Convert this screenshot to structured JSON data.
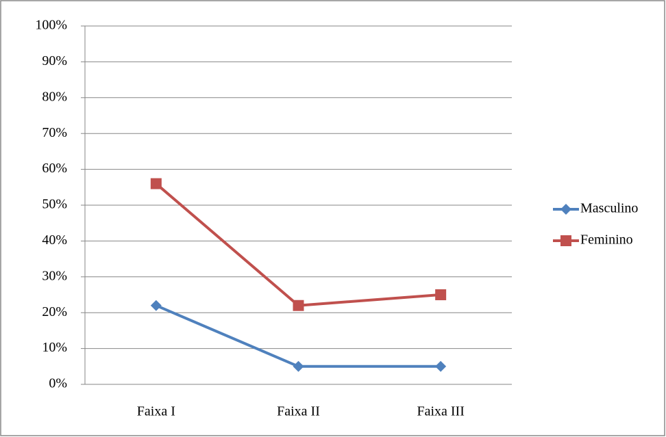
{
  "chart_data": {
    "type": "line",
    "categories": [
      "Faixa I",
      "Faixa II",
      "Faixa III"
    ],
    "series": [
      {
        "name": "Masculino",
        "color": "#4f81bd",
        "marker": "diamond",
        "values": [
          22,
          5,
          5
        ]
      },
      {
        "name": "Feminino",
        "color": "#c0504d",
        "marker": "square",
        "values": [
          56,
          22,
          25
        ]
      }
    ],
    "ylim": [
      0,
      100
    ],
    "yticks": [
      {
        "value": 0,
        "label": "0%"
      },
      {
        "value": 10,
        "label": "10%"
      },
      {
        "value": 20,
        "label": "20%"
      },
      {
        "value": 30,
        "label": "30%"
      },
      {
        "value": 40,
        "label": "40%"
      },
      {
        "value": 50,
        "label": "50%"
      },
      {
        "value": 60,
        "label": "60%"
      },
      {
        "value": 70,
        "label": "70%"
      },
      {
        "value": 80,
        "label": "80%"
      },
      {
        "value": 90,
        "label": "90%"
      },
      {
        "value": 100,
        "label": "100%"
      }
    ],
    "grid": true,
    "legend": "right"
  }
}
